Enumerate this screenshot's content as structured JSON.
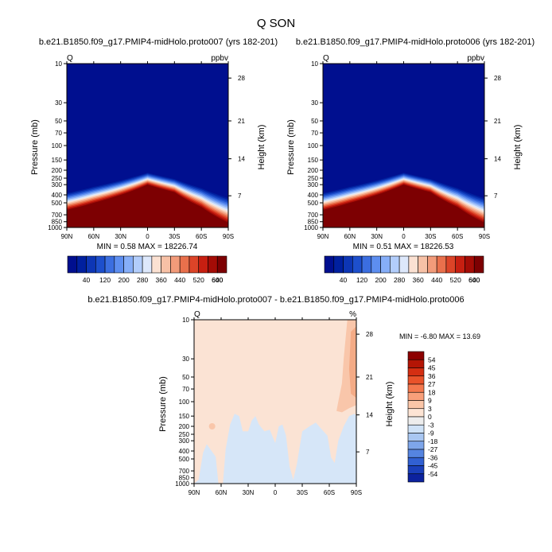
{
  "figure": {
    "title": "Q SON"
  },
  "chart_data": [
    {
      "type": "heatmap",
      "title": "b.e21.B1850.f09_g17.PMIP4-midHolo.proto007 (yrs 182-201)",
      "left_label": "Q",
      "right_label": "ppbv",
      "ylabel": "Pressure (mb)",
      "y2label": "Height (km)",
      "x_ticks": [
        "90N",
        "60N",
        "30N",
        "0",
        "30S",
        "60S",
        "90S"
      ],
      "y_ticks": [
        "10",
        "30",
        "50",
        "70",
        "100",
        "150",
        "200",
        "250",
        "300",
        "400",
        "500",
        "700",
        "850",
        "1000"
      ],
      "y2_ticks": [
        "28",
        "21",
        "14",
        "7"
      ],
      "y_scale": "log",
      "y_range": [
        1000,
        10
      ],
      "stats": "MIN =   0.58   MAX = 18226.74",
      "colorbar_labels": [
        "40",
        "120",
        "200",
        "280",
        "360",
        "440",
        "520",
        "600",
        "640"
      ],
      "colorbar_colors": [
        "#000f8f",
        "#00209f",
        "#0d36b5",
        "#1d4fcc",
        "#3b6ee0",
        "#5d8ef0",
        "#86aef8",
        "#b2cdfb",
        "#dde8fb",
        "#fbe1d2",
        "#f7c1a6",
        "#f29b7a",
        "#e9704c",
        "#dc4428",
        "#c71f11",
        "#a40c06",
        "#7d0002"
      ],
      "approx_surfaces": {
        "latitudes": [
          90,
          60,
          30,
          0,
          -30,
          -60,
          -90
        ],
        "contour_150ppbv_pressure_mb": [
          370,
          310,
          260,
          210,
          250,
          320,
          420
        ],
        "contour_600ppbv_pressure_mb": [
          610,
          500,
          400,
          300,
          370,
          560,
          870
        ]
      }
    },
    {
      "type": "heatmap",
      "title": "b.e21.B1850.f09_g17.PMIP4-midHolo.proto006 (yrs 182-201)",
      "left_label": "Q",
      "right_label": "ppbv",
      "ylabel": "Pressure (mb)",
      "y2label": "Height (km)",
      "x_ticks": [
        "90N",
        "60N",
        "30N",
        "0",
        "30S",
        "60S",
        "90S"
      ],
      "y_ticks": [
        "10",
        "30",
        "50",
        "70",
        "100",
        "150",
        "200",
        "250",
        "300",
        "400",
        "500",
        "700",
        "850",
        "1000"
      ],
      "y2_ticks": [
        "28",
        "21",
        "14",
        "7"
      ],
      "y_scale": "log",
      "y_range": [
        1000,
        10
      ],
      "stats": "MIN =   0.51   MAX = 18226.53",
      "colorbar_labels": [
        "40",
        "120",
        "200",
        "280",
        "360",
        "440",
        "520",
        "600",
        "640"
      ],
      "colorbar_colors": [
        "#000f8f",
        "#00209f",
        "#0d36b5",
        "#1d4fcc",
        "#3b6ee0",
        "#5d8ef0",
        "#86aef8",
        "#b2cdfb",
        "#dde8fb",
        "#fbe1d2",
        "#f7c1a6",
        "#f29b7a",
        "#e9704c",
        "#dc4428",
        "#c71f11",
        "#a40c06",
        "#7d0002"
      ],
      "approx_surfaces": {
        "latitudes": [
          90,
          60,
          30,
          0,
          -30,
          -60,
          -90
        ],
        "contour_150ppbv_pressure_mb": [
          370,
          310,
          260,
          210,
          250,
          320,
          420
        ],
        "contour_600ppbv_pressure_mb": [
          610,
          500,
          400,
          300,
          370,
          560,
          870
        ]
      }
    },
    {
      "type": "heatmap",
      "title": "b.e21.B1850.f09_g17.PMIP4-midHolo.proto007 - b.e21.B1850.f09_g17.PMIP4-midHolo.proto006",
      "left_label": "Q",
      "right_label": "%",
      "ylabel": "Pressure (mb)",
      "y2label": "Height (km)",
      "x_ticks": [
        "90N",
        "60N",
        "30N",
        "0",
        "30S",
        "60S",
        "90S"
      ],
      "y_ticks": [
        "10",
        "30",
        "50",
        "70",
        "100",
        "150",
        "200",
        "250",
        "300",
        "400",
        "500",
        "700",
        "850",
        "1000"
      ],
      "y2_ticks": [
        "28",
        "21",
        "14",
        "7"
      ],
      "y_scale": "log",
      "y_range": [
        1000,
        10
      ],
      "stats": "MIN =  -6.80   MAX =  13.69",
      "colorbar_labels": [
        "54",
        "45",
        "36",
        "27",
        "18",
        "9",
        "3",
        "0",
        "-3",
        "-9",
        "-18",
        "-27",
        "-36",
        "-45",
        "-54"
      ],
      "colorbar_colors": [
        "#8c0000",
        "#b41505",
        "#d42e12",
        "#e9522a",
        "#f4784e",
        "#f89f7a",
        "#fbc6a8",
        "#fde4d4",
        "#ededed",
        "#cfe2f7",
        "#a9c7f2",
        "#7ea6ea",
        "#5584e0",
        "#3160d2",
        "#1a3fba",
        "#0c229e"
      ],
      "background_class": "3 to 9",
      "approx_regions": [
        {
          "class": "-3 to 0",
          "description_lat_range": [
            "90N",
            "90S"
          ],
          "pressure_range_mb": [
            1000,
            150
          ]
        },
        {
          "class": "9 to 18",
          "lat_range": [
            "60S",
            "90S"
          ],
          "pressure_range_mb": [
            130,
            10
          ]
        }
      ]
    }
  ]
}
